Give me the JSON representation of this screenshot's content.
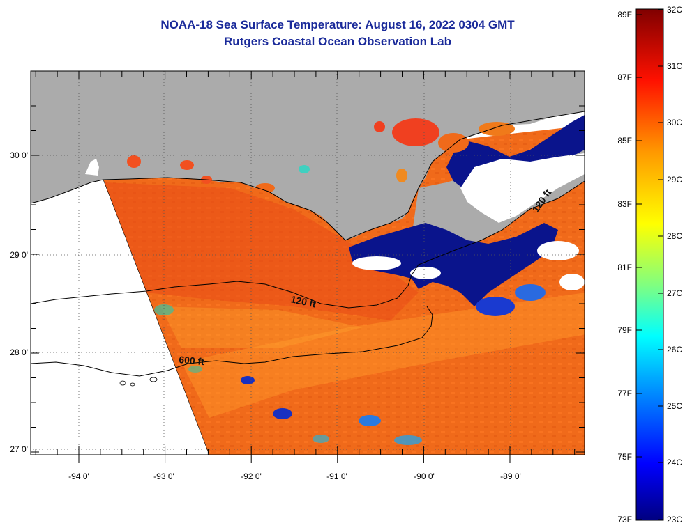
{
  "header": {
    "title": "NOAA-18 Sea Surface Temperature:  August 16, 2022 0304 GMT",
    "subtitle": "Rutgers Coastal Ocean Observation Lab"
  },
  "map": {
    "lon_labels": [
      "-94 0'",
      "-93 0'",
      "-92 0'",
      "-91 0'",
      "-90 0'",
      "-89 0'"
    ],
    "lat_labels": [
      "30 0'",
      "29 0'",
      "28 0'",
      "27 0'"
    ],
    "contours": [
      {
        "label": "120 ft"
      },
      {
        "label": "600 ft"
      },
      {
        "label": "120 ft"
      }
    ],
    "colors": {
      "land": "#ababab",
      "no_data": "#ffffff",
      "warm_water": "#f06a1a",
      "cold_water": "#0a148c"
    }
  },
  "colorbar": {
    "f_labels": [
      "89F",
      "87F",
      "85F",
      "83F",
      "81F",
      "79F",
      "77F",
      "75F",
      "73F"
    ],
    "c_labels": [
      "32C",
      "31C",
      "30C",
      "29C",
      "28C",
      "27C",
      "26C",
      "25C",
      "24C",
      "23C"
    ]
  }
}
